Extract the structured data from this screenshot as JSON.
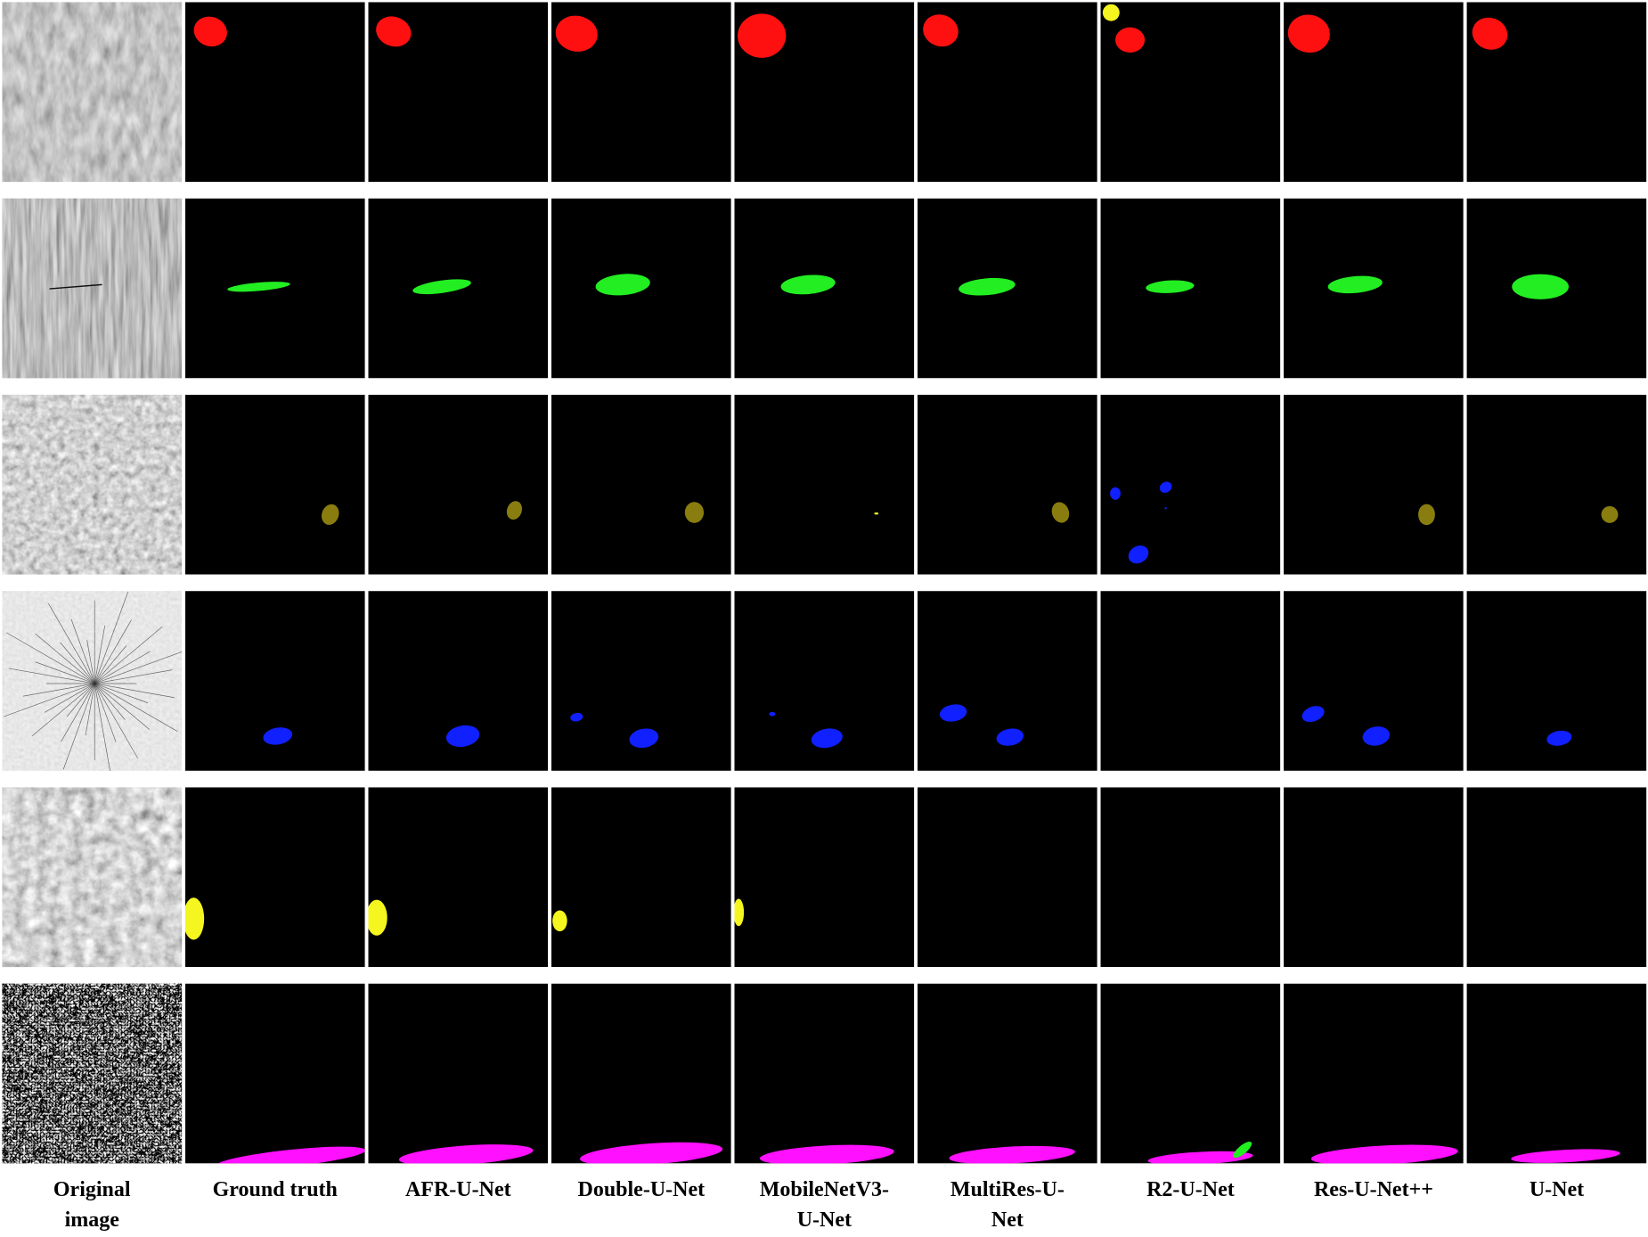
{
  "column_labels": [
    "Original image",
    "Ground truth",
    "AFR-U-Net",
    "Double-U-Net",
    "MobileNetV3-U-Net",
    "MultiRes-U-Net",
    "R2-U-Net",
    "Res-U-Net++",
    "U-Net"
  ]
}
